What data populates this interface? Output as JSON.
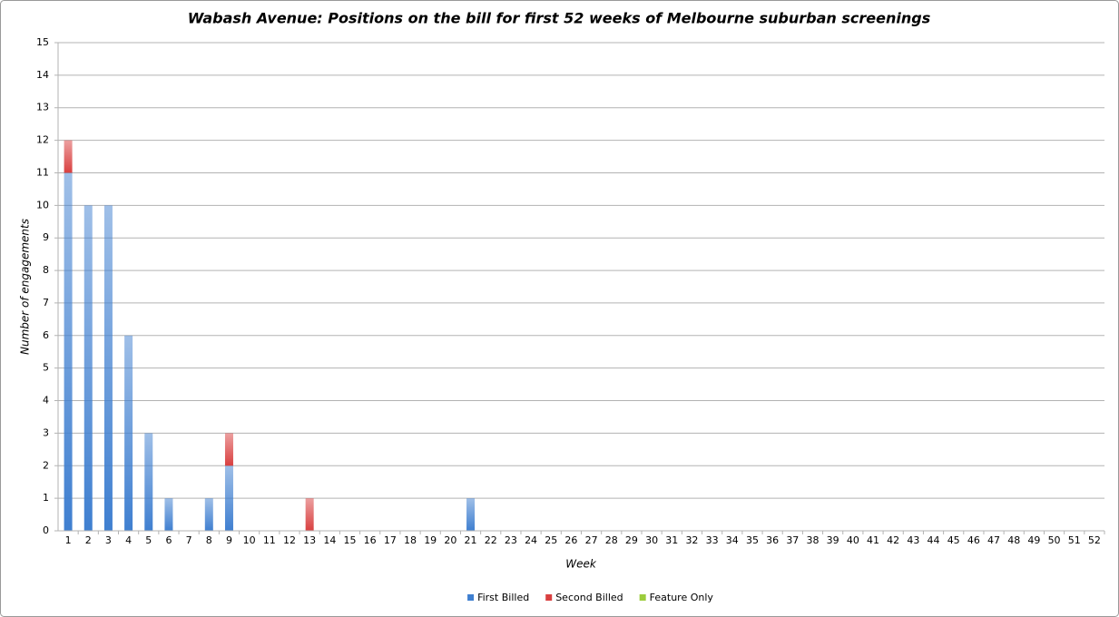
{
  "chart_data": {
    "type": "stacked_bar",
    "title": "Wabash Avenue: Positions on the bill for first 52 weeks of Melbourne suburban screenings",
    "x_label": "Week",
    "y_label": "Number of engagements",
    "categories": [
      1,
      2,
      3,
      4,
      5,
      6,
      7,
      8,
      9,
      10,
      11,
      12,
      13,
      14,
      15,
      16,
      17,
      18,
      19,
      20,
      21,
      22,
      23,
      24,
      25,
      26,
      27,
      28,
      29,
      30,
      31,
      32,
      33,
      34,
      35,
      36,
      37,
      38,
      39,
      40,
      41,
      42,
      43,
      44,
      45,
      46,
      47,
      48,
      49,
      50,
      51,
      52
    ],
    "series": [
      {
        "name": "First Billed",
        "color": "#3f7fd0",
        "values": [
          11,
          10,
          10,
          6,
          3,
          1,
          0,
          1,
          2,
          0,
          0,
          0,
          0,
          0,
          0,
          0,
          0,
          0,
          0,
          0,
          1,
          0,
          0,
          0,
          0,
          0,
          0,
          0,
          0,
          0,
          0,
          0,
          0,
          0,
          0,
          0,
          0,
          0,
          0,
          0,
          0,
          0,
          0,
          0,
          0,
          0,
          0,
          0,
          0,
          0,
          0,
          0
        ]
      },
      {
        "name": "Second Billed",
        "color": "#d94040",
        "values": [
          1,
          0,
          0,
          0,
          0,
          0,
          0,
          0,
          1,
          0,
          0,
          0,
          1,
          0,
          0,
          0,
          0,
          0,
          0,
          0,
          0,
          0,
          0,
          0,
          0,
          0,
          0,
          0,
          0,
          0,
          0,
          0,
          0,
          0,
          0,
          0,
          0,
          0,
          0,
          0,
          0,
          0,
          0,
          0,
          0,
          0,
          0,
          0,
          0,
          0,
          0,
          0
        ]
      },
      {
        "name": "Feature Only",
        "color": "#9ccc3c",
        "values": [
          0,
          0,
          0,
          0,
          0,
          0,
          0,
          0,
          0,
          0,
          0,
          0,
          0,
          0,
          0,
          0,
          0,
          0,
          0,
          0,
          0,
          0,
          0,
          0,
          0,
          0,
          0,
          0,
          0,
          0,
          0,
          0,
          0,
          0,
          0,
          0,
          0,
          0,
          0,
          0,
          0,
          0,
          0,
          0,
          0,
          0,
          0,
          0,
          0,
          0,
          0,
          0
        ]
      }
    ],
    "ylim": [
      0,
      15
    ],
    "yticks": [
      0,
      1,
      2,
      3,
      4,
      5,
      6,
      7,
      8,
      9,
      10,
      11,
      12,
      13,
      14,
      15
    ],
    "grid": true,
    "legend": "bottom"
  }
}
